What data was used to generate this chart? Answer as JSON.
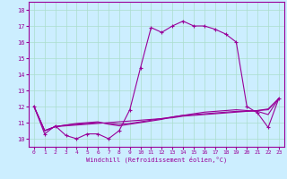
{
  "title": "",
  "xlabel": "Windchill (Refroidissement éolien,°C)",
  "background_color": "#cceeff",
  "line_color": "#990099",
  "x_values": [
    0,
    1,
    2,
    3,
    4,
    5,
    6,
    7,
    8,
    9,
    10,
    11,
    12,
    13,
    14,
    15,
    16,
    17,
    18,
    19,
    20,
    21,
    22,
    23
  ],
  "y_main": [
    12.0,
    10.3,
    10.8,
    10.2,
    10.0,
    10.3,
    10.3,
    10.0,
    10.5,
    11.8,
    14.4,
    16.9,
    16.6,
    17.0,
    17.3,
    17.0,
    17.0,
    16.8,
    16.5,
    16.0,
    12.0,
    11.6,
    10.7,
    12.5
  ],
  "y_flat1": [
    12.0,
    10.5,
    10.75,
    10.8,
    10.85,
    10.9,
    10.95,
    11.0,
    11.05,
    11.1,
    11.15,
    11.2,
    11.25,
    11.3,
    11.4,
    11.45,
    11.5,
    11.55,
    11.6,
    11.65,
    11.7,
    11.75,
    11.85,
    12.5
  ],
  "y_flat2": [
    12.0,
    10.5,
    10.75,
    10.85,
    10.9,
    10.95,
    11.0,
    10.95,
    10.9,
    10.95,
    11.05,
    11.15,
    11.25,
    11.35,
    11.45,
    11.5,
    11.55,
    11.6,
    11.65,
    11.7,
    11.7,
    11.75,
    11.8,
    12.5
  ],
  "y_flat3": [
    12.0,
    10.5,
    10.75,
    10.85,
    10.95,
    11.0,
    11.05,
    10.9,
    10.8,
    10.9,
    11.0,
    11.1,
    11.2,
    11.35,
    11.45,
    11.55,
    11.65,
    11.7,
    11.75,
    11.8,
    11.75,
    11.7,
    11.5,
    12.5
  ],
  "ylim_min": 9.5,
  "ylim_max": 18.5,
  "xlim_min": -0.5,
  "xlim_max": 23.5,
  "yticks": [
    10,
    11,
    12,
    13,
    14,
    15,
    16,
    17,
    18
  ],
  "xticks": [
    0,
    1,
    2,
    3,
    4,
    5,
    6,
    7,
    8,
    9,
    10,
    11,
    12,
    13,
    14,
    15,
    16,
    17,
    18,
    19,
    20,
    21,
    22,
    23
  ],
  "grid_color": "#aaddcc",
  "fig_width": 3.2,
  "fig_height": 2.0,
  "dpi": 100
}
